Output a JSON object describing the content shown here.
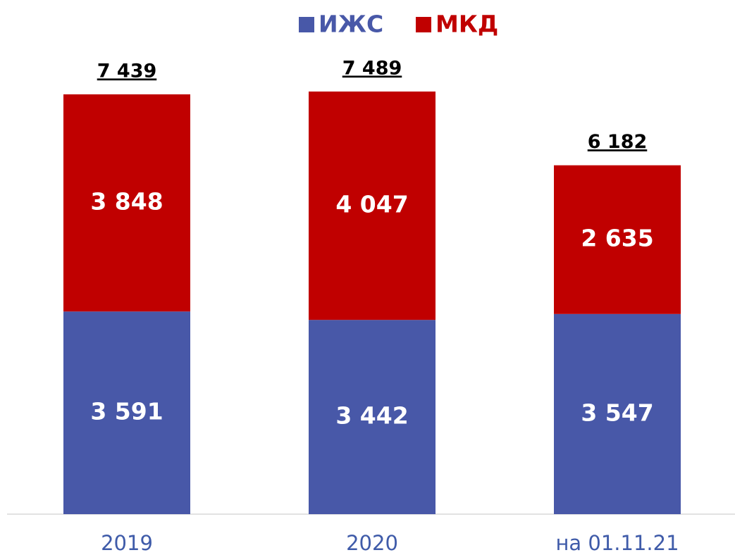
{
  "chart_data": {
    "type": "stacked_bar",
    "categories": [
      "2019",
      "2020",
      "на 01.11.21"
    ],
    "series": [
      {
        "name": "ИЖС",
        "color": "#4858a8",
        "values": [
          3591,
          3442,
          3547
        ],
        "value_labels": [
          "3 591",
          "3 442",
          "3 547"
        ]
      },
      {
        "name": "МКД",
        "color": "#c00000",
        "values": [
          3848,
          4047,
          2635
        ],
        "value_labels": [
          "3 848",
          "4 047",
          "2 635"
        ]
      }
    ],
    "total_labels": [
      "7 439",
      "7 489",
      "6 182"
    ],
    "ylim": [
      0,
      8000
    ],
    "legend": "top"
  }
}
